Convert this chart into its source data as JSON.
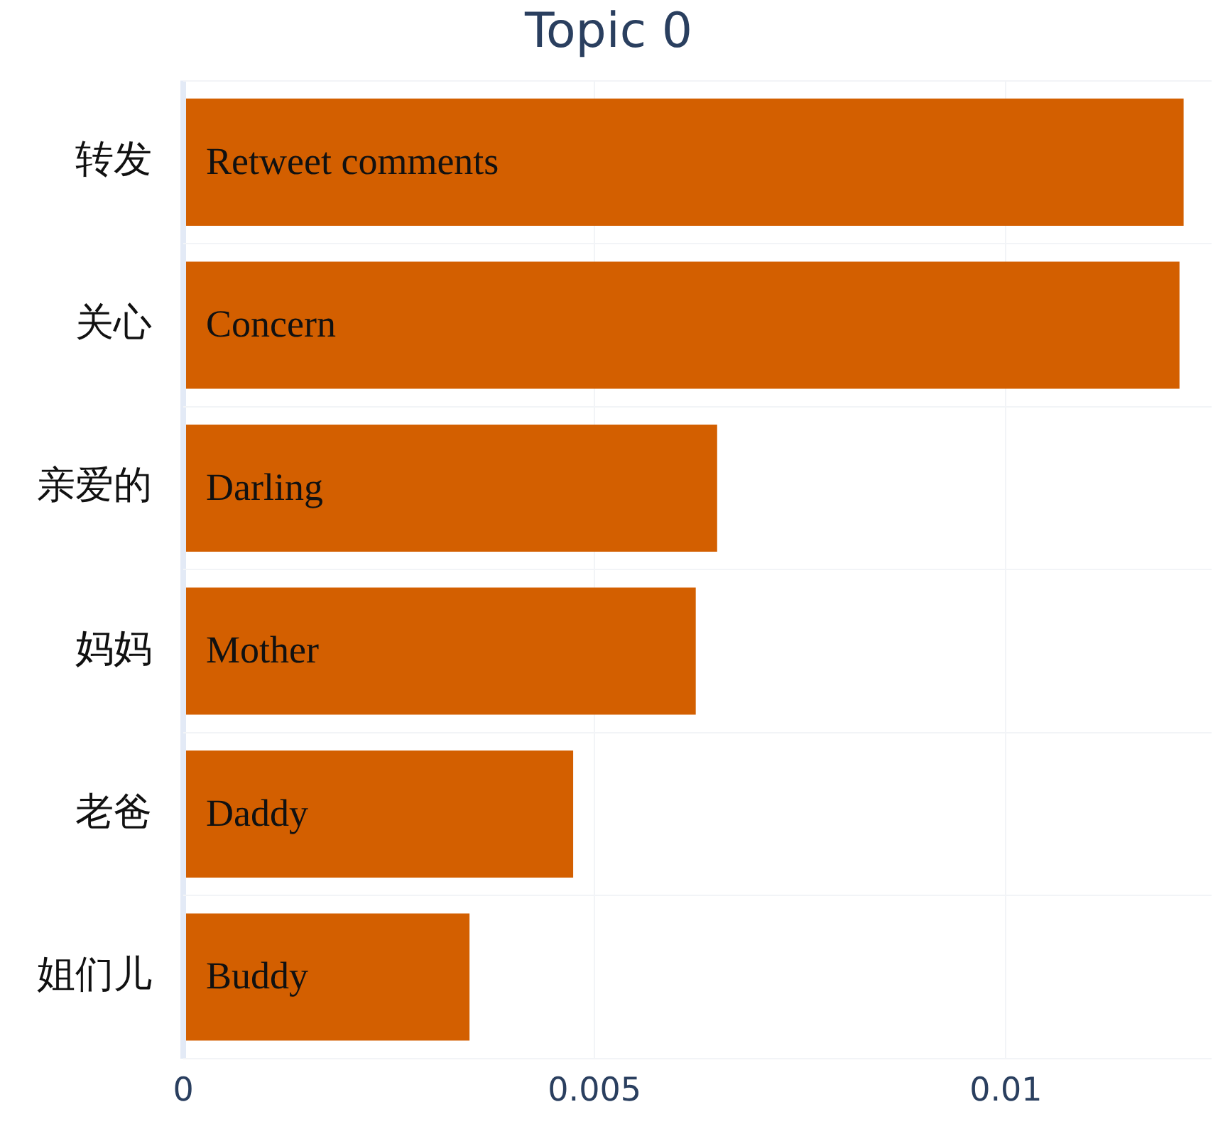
{
  "chart_data": {
    "type": "bar",
    "orientation": "horizontal",
    "title": "Topic 0",
    "categories": [
      "转发",
      "关心",
      "亲爱的",
      "妈妈",
      "老爸",
      "姐们儿"
    ],
    "values": [
      0.01216,
      0.01211,
      0.00649,
      0.00623,
      0.00474,
      0.00348
    ],
    "color": "#d35f00",
    "xlim": [
      0,
      0.0125
    ],
    "xticks": [
      0,
      0.005,
      0.01
    ],
    "grid": true,
    "annotations": [
      {
        "text": "Retweet comments",
        "y": "转发"
      },
      {
        "text": "Concern",
        "y": "关心"
      },
      {
        "text": "Darling",
        "y": "亲爱的"
      },
      {
        "text": "Mother",
        "y": "妈妈"
      },
      {
        "text": "Daddy",
        "y": "老爸"
      },
      {
        "text": "Buddy",
        "y": "姐们儿"
      }
    ]
  }
}
